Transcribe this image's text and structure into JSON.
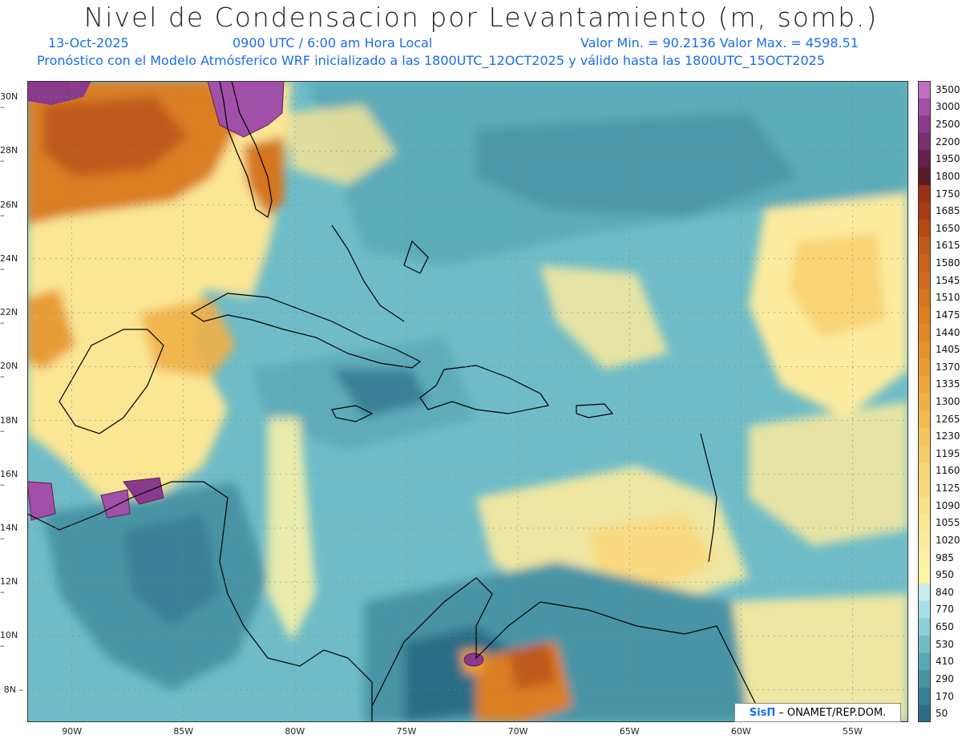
{
  "header": {
    "title": "Nivel de Condensacion por Levantamiento (m, somb.)",
    "date": "13-Oct-2025",
    "time": "0900 UTC / 6:00 am Hora Local",
    "min_max": "Valor Min. = 90.2136  Valor Max. = 4598.51",
    "model_info": "Pronóstico con el Modelo Atmósferico WRF inicializado a las 1800UTC_12OCT2025 y válido hasta las  1800UTC_15OCT2025"
  },
  "map": {
    "lon_range": [
      -92,
      -52.5
    ],
    "lat_range": [
      6.8,
      30.6
    ],
    "lat_ticks": [
      "30N",
      "28N",
      "26N",
      "24N",
      "22N",
      "20N",
      "18N",
      "16N",
      "14N",
      "12N",
      "10N",
      "8N"
    ],
    "lon_ticks": [
      "90W",
      "85W",
      "80W",
      "75W",
      "70W",
      "65W",
      "60W",
      "55W"
    ],
    "features": [
      {
        "name": "florida",
        "label": ""
      },
      {
        "name": "cuba",
        "label": ""
      },
      {
        "name": "hispaniola",
        "label": ""
      },
      {
        "name": "jamaica",
        "label": ""
      },
      {
        "name": "puerto-rico",
        "label": ""
      },
      {
        "name": "yucatan",
        "label": ""
      },
      {
        "name": "central-america",
        "label": ""
      },
      {
        "name": "south-america",
        "label": ""
      }
    ]
  },
  "colorbar": {
    "levels": [
      "3500",
      "3000",
      "2500",
      "2200",
      "1950",
      "1800",
      "1750",
      "1685",
      "1650",
      "1615",
      "1580",
      "1545",
      "1510",
      "1475",
      "1440",
      "1405",
      "1370",
      "1335",
      "1300",
      "1265",
      "1230",
      "1195",
      "1160",
      "1125",
      "1090",
      "1055",
      "1020",
      "985",
      "950",
      "840",
      "770",
      "650",
      "530",
      "410",
      "290",
      "170",
      "50"
    ],
    "colors": [
      "#c06ec0",
      "#a050a8",
      "#8a3a8c",
      "#763070",
      "#62204e",
      "#5a1a28",
      "#9a3015",
      "#a83a15",
      "#b54a17",
      "#c05a1a",
      "#ca621c",
      "#d06a1e",
      "#d6741f",
      "#dc7e22",
      "#e08826",
      "#e4922c",
      "#e89c34",
      "#eca63c",
      "#f0b046",
      "#f3ba50",
      "#f5c45c",
      "#f6cc68",
      "#f8d474",
      "#f9da80",
      "#fae08a",
      "#fbe694",
      "#fceb9e",
      "#fdf0a8",
      "#fff4a6",
      "#c8ecec",
      "#a6e0e6",
      "#8ccfd6",
      "#72bcc6",
      "#5aa8b6",
      "#4894a4",
      "#3a8096",
      "#2b6e86"
    ]
  },
  "credit": {
    "logo": "SisΠ",
    "text": "– ONAMET/REP.DOM."
  }
}
